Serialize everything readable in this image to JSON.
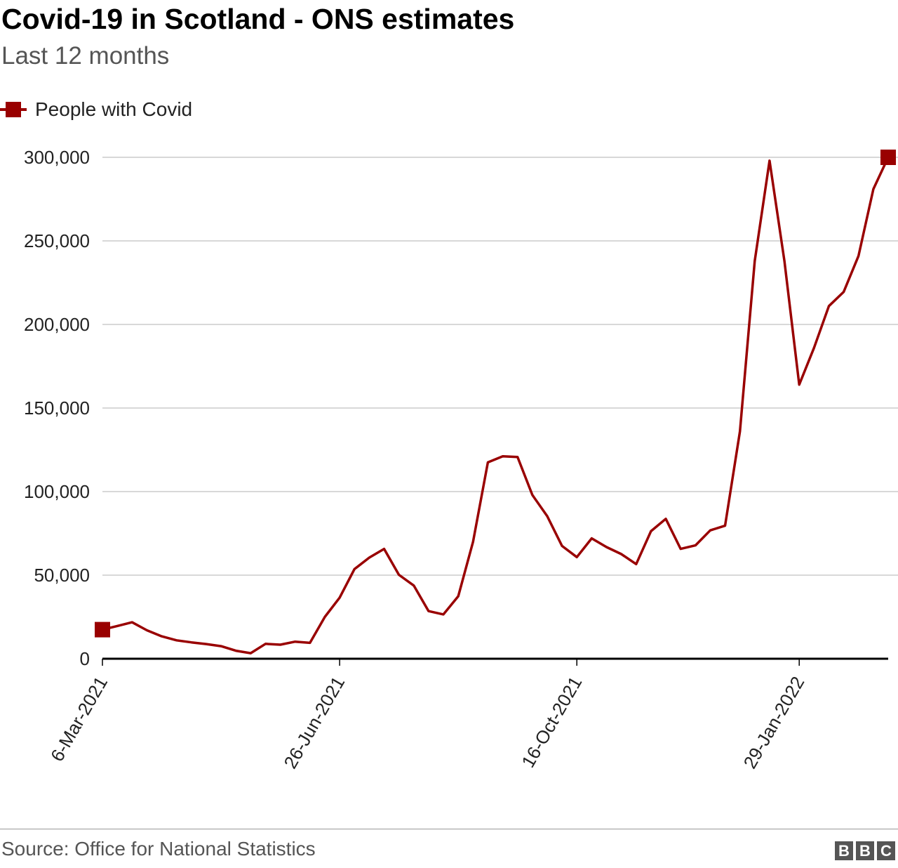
{
  "header": {
    "title": "Covid-19 in Scotland - ONS estimates",
    "subtitle": "Last 12 months"
  },
  "footer": {
    "source": "Source: Office for National Statistics",
    "logo_letters": [
      "B",
      "B",
      "C"
    ]
  },
  "colors": {
    "series": "#990000",
    "grid": "#cccccc",
    "axis": "#000000"
  },
  "chart_data": {
    "type": "line",
    "title": "Covid-19 in Scotland - ONS estimates",
    "subtitle": "Last 12 months",
    "xlabel": "",
    "ylabel": "",
    "ylim": [
      0,
      300000
    ],
    "y_ticks": [
      0,
      50000,
      100000,
      150000,
      200000,
      250000,
      300000
    ],
    "y_tick_labels": [
      "0",
      "50,000",
      "100,000",
      "150,000",
      "200,000",
      "250,000",
      "300,000"
    ],
    "x_tick_labels": [
      "6-Mar-2021",
      "26-Jun-2021",
      "16-Oct-2021",
      "29-Jan-2022"
    ],
    "x_tick_index": [
      0,
      16,
      32,
      47
    ],
    "grid": true,
    "legend_position": "top-left",
    "series": [
      {
        "name": "People with Covid",
        "values": [
          17400,
          19600,
          21800,
          17000,
          13400,
          11000,
          9800,
          8800,
          7500,
          4800,
          3300,
          8900,
          8400,
          10200,
          9500,
          25000,
          36500,
          53600,
          60500,
          65700,
          50200,
          43800,
          28500,
          26500,
          37400,
          70000,
          117500,
          121100,
          120700,
          98000,
          85300,
          67500,
          60800,
          72000,
          66800,
          62600,
          56600,
          76300,
          83700,
          65700,
          67800,
          76800,
          79600,
          136000,
          238000,
          298000,
          238000,
          164000,
          186000,
          211000,
          219500,
          241000,
          281000,
          300000
        ]
      }
    ]
  }
}
